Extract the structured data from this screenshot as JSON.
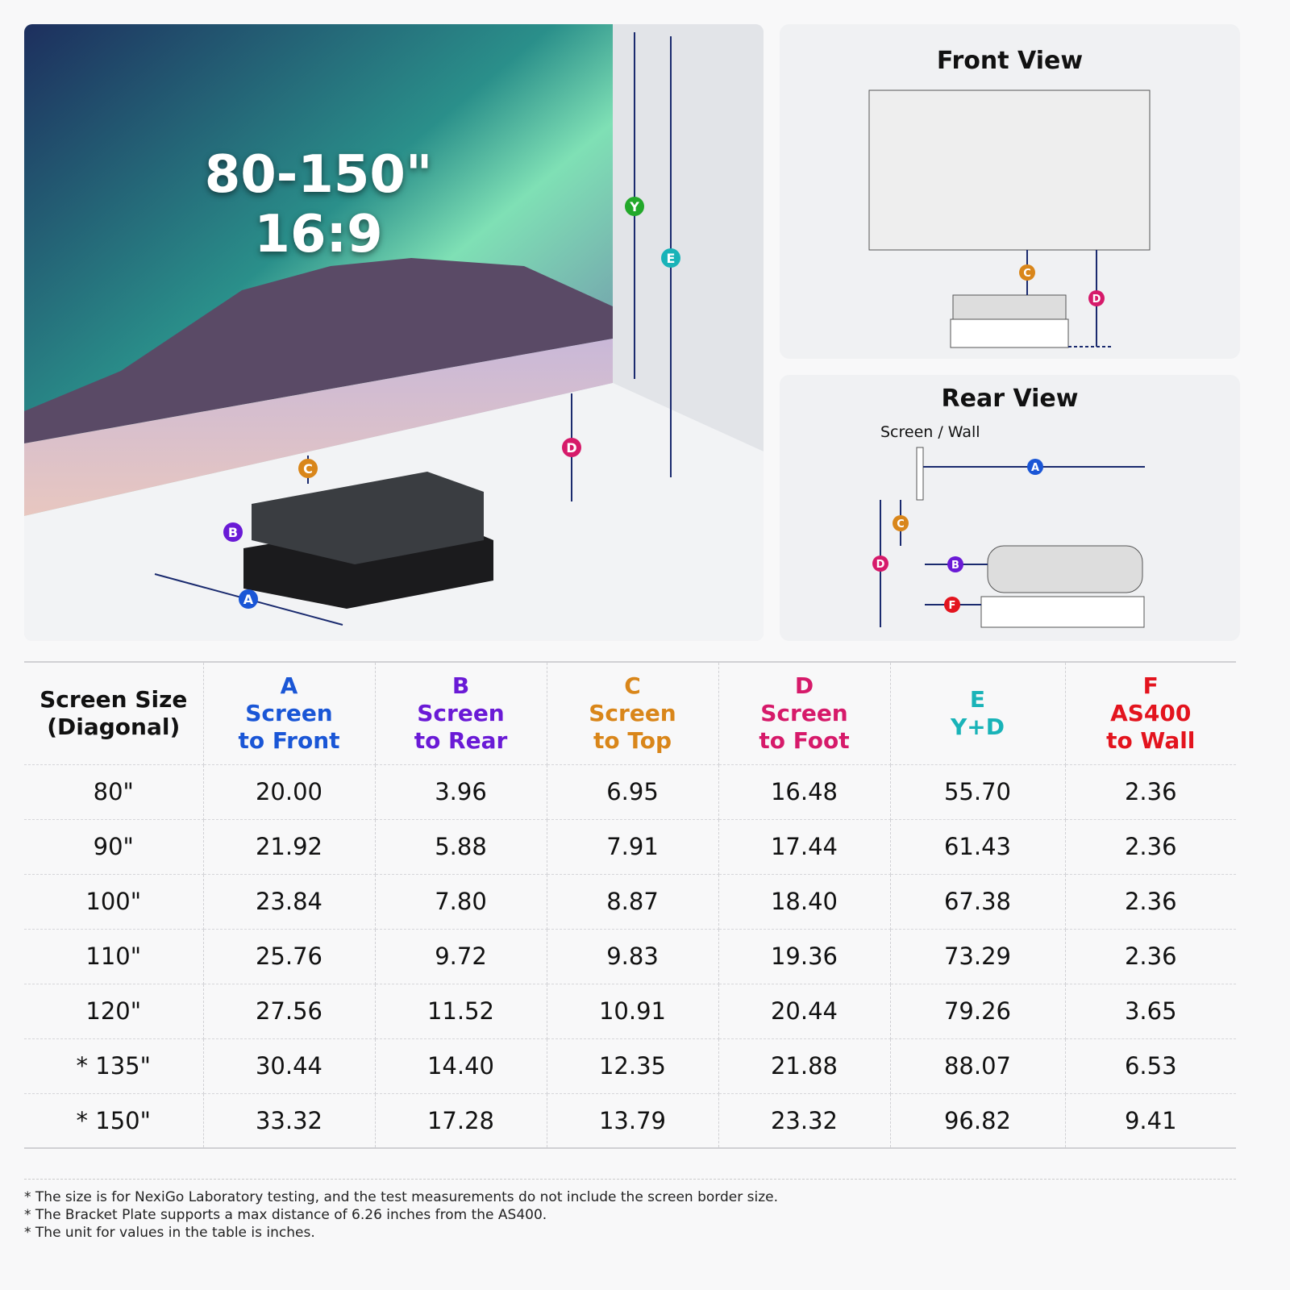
{
  "hero": {
    "size_range": "80-150\"",
    "aspect": "16:9"
  },
  "markers": {
    "A": "A",
    "B": "B",
    "C": "C",
    "D": "D",
    "E": "E",
    "F": "F",
    "Y": "Y"
  },
  "colors": {
    "A": "#1a56d6",
    "B": "#6a1ad6",
    "C": "#d9861a",
    "D": "#d61a6a",
    "E": "#19b3b8",
    "F": "#e3141e",
    "Y": "#22a82a",
    "line": "#1a2a6e"
  },
  "front_view": {
    "title": "Front View"
  },
  "rear_view": {
    "title": "Rear View",
    "wall_label": "Screen / Wall"
  },
  "table": {
    "headers": [
      {
        "lines": [
          "Screen Size",
          "(Diagonal)"
        ],
        "color": "#111111"
      },
      {
        "lines": [
          "A",
          "Screen",
          "to Front"
        ],
        "color": "#1a56d6"
      },
      {
        "lines": [
          "B",
          "Screen",
          "to Rear"
        ],
        "color": "#6a1ad6"
      },
      {
        "lines": [
          "C",
          "Screen",
          "to Top"
        ],
        "color": "#d9861a"
      },
      {
        "lines": [
          "D",
          "Screen",
          "to Foot"
        ],
        "color": "#d61a6a"
      },
      {
        "lines": [
          "E",
          "Y+D"
        ],
        "color": "#19b3b8"
      },
      {
        "lines": [
          "F",
          "AS400",
          "to Wall"
        ],
        "color": "#e3141e"
      }
    ],
    "rows": [
      [
        "80\"",
        "20.00",
        "3.96",
        "6.95",
        "16.48",
        "55.70",
        "2.36"
      ],
      [
        "90\"",
        "21.92",
        "5.88",
        "7.91",
        "17.44",
        "61.43",
        "2.36"
      ],
      [
        "100\"",
        "23.84",
        "7.80",
        "8.87",
        "18.40",
        "67.38",
        "2.36"
      ],
      [
        "110\"",
        "25.76",
        "9.72",
        "9.83",
        "19.36",
        "73.29",
        "2.36"
      ],
      [
        "120\"",
        "27.56",
        "11.52",
        "10.91",
        "20.44",
        "79.26",
        "3.65"
      ],
      [
        "* 135\"",
        "30.44",
        "14.40",
        "12.35",
        "21.88",
        "88.07",
        "6.53"
      ],
      [
        "* 150\"",
        "33.32",
        "17.28",
        "13.79",
        "23.32",
        "96.82",
        "9.41"
      ]
    ]
  },
  "footnotes": [
    "* The size is for NexiGo Laboratory testing, and the test measurements do not include the screen border size.",
    "* The Bracket Plate supports a max distance of 6.26 inches from the AS400.",
    "* The unit for values in the table is inches."
  ]
}
